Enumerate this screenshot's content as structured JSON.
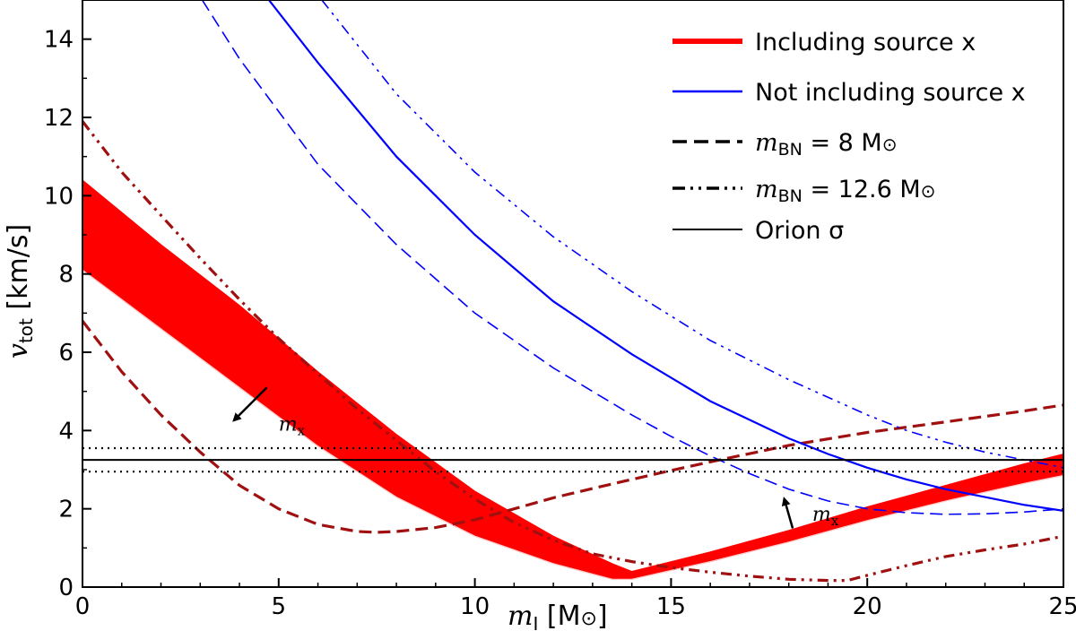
{
  "chart_data": {
    "type": "line",
    "xlabel": "m_I [M_sun]",
    "ylabel": "v_tot [km/s]",
    "xlim": [
      0,
      25
    ],
    "ylim": [
      0,
      15
    ],
    "xticks": [
      0,
      5,
      10,
      15,
      20,
      25
    ],
    "yticks": [
      0,
      2,
      4,
      6,
      8,
      10,
      12,
      14
    ],
    "x_tick_labels": [
      "0",
      "5",
      "10",
      "15",
      "20",
      "25"
    ],
    "y_tick_labels": [
      "0",
      "2",
      "4",
      "6",
      "8",
      "10",
      "12",
      "14"
    ],
    "axis_labels": {
      "x_main": "m",
      "x_sub": "I",
      "x_unit": " [M",
      "x_sun": "⊙",
      "x_close": "]",
      "y_main": "v",
      "y_sub": "tot",
      "y_unit": " [km/s]"
    },
    "legend": {
      "position": "top-right",
      "entries": [
        {
          "label": "Including source x",
          "color": "#ff0000",
          "style": "solid-thick"
        },
        {
          "label": "Not including source x",
          "color": "#0000ff",
          "style": "solid"
        },
        {
          "label_pre": "m",
          "label_sub": "BN",
          "label_post": " = 8 M",
          "label_sun": "⊙",
          "color": "#000000",
          "style": "dashed"
        },
        {
          "label_pre": "m",
          "label_sub": "BN",
          "label_post": " = 12.6 M",
          "label_sun": "⊙",
          "color": "#000000",
          "style": "dashdotdot"
        },
        {
          "label": "Orion σ",
          "color": "#000000",
          "style": "solid"
        }
      ]
    },
    "annotations": [
      {
        "text_main": "m",
        "text_sub": "x",
        "at": [
          5.0,
          4.0
        ],
        "arrow_from": [
          4.7,
          5.1
        ],
        "arrow_to": [
          3.9,
          4.3
        ]
      },
      {
        "text_main": "m",
        "text_sub": "x",
        "at": [
          18.6,
          1.7
        ],
        "arrow_from": [
          18.1,
          1.5
        ],
        "arrow_to": [
          17.9,
          2.2
        ]
      }
    ],
    "series": [
      {
        "name": "Including source x (band, m_BN=8)",
        "kind": "band",
        "color": "#ff0000",
        "upper": [
          [
            0,
            10.4
          ],
          [
            2,
            8.75
          ],
          [
            4,
            7.2
          ],
          [
            6,
            5.5
          ],
          [
            8,
            3.9
          ],
          [
            10,
            2.45
          ],
          [
            12,
            1.3
          ],
          [
            13.5,
            0.6
          ],
          [
            14,
            0.4
          ],
          [
            16,
            0.9
          ],
          [
            18,
            1.45
          ],
          [
            20,
            2.05
          ],
          [
            22,
            2.6
          ],
          [
            24,
            3.15
          ],
          [
            25,
            3.4
          ]
        ],
        "lower": [
          [
            0,
            8.1
          ],
          [
            2,
            6.6
          ],
          [
            4,
            5.1
          ],
          [
            6,
            3.6
          ],
          [
            8,
            2.3
          ],
          [
            10,
            1.3
          ],
          [
            12,
            0.6
          ],
          [
            13.5,
            0.2
          ],
          [
            14,
            0.2
          ],
          [
            16,
            0.65
          ],
          [
            18,
            1.15
          ],
          [
            20,
            1.7
          ],
          [
            22,
            2.2
          ],
          [
            24,
            2.65
          ],
          [
            25,
            2.85
          ]
        ]
      },
      {
        "name": "Including source x, m_BN=8 (dashed)",
        "color": "#a01010",
        "style": "dashed",
        "points": [
          [
            0,
            6.8
          ],
          [
            1,
            5.5
          ],
          [
            2,
            4.4
          ],
          [
            3,
            3.45
          ],
          [
            4,
            2.6
          ],
          [
            5,
            2.0
          ],
          [
            6,
            1.6
          ],
          [
            7,
            1.42
          ],
          [
            7.5,
            1.4
          ],
          [
            8,
            1.42
          ],
          [
            9,
            1.52
          ],
          [
            10,
            1.72
          ],
          [
            11,
            2.0
          ],
          [
            12,
            2.28
          ],
          [
            13,
            2.52
          ],
          [
            14,
            2.75
          ],
          [
            15,
            2.98
          ],
          [
            16,
            3.2
          ],
          [
            18,
            3.62
          ],
          [
            20,
            3.95
          ],
          [
            22,
            4.22
          ],
          [
            24,
            4.5
          ],
          [
            25,
            4.65
          ]
        ]
      },
      {
        "name": "Including source x, m_BN=12.6 (dash-dot-dot)",
        "color": "#a01010",
        "style": "dashdotdot",
        "points": [
          [
            0,
            11.9
          ],
          [
            1,
            10.6
          ],
          [
            2,
            9.5
          ],
          [
            3,
            8.4
          ],
          [
            4,
            7.35
          ],
          [
            5,
            6.35
          ],
          [
            6,
            5.45
          ],
          [
            7,
            4.55
          ],
          [
            8,
            3.75
          ],
          [
            9,
            2.95
          ],
          [
            10,
            2.25
          ],
          [
            11,
            1.65
          ],
          [
            12,
            1.2
          ],
          [
            13,
            0.85
          ],
          [
            14,
            0.65
          ],
          [
            15,
            0.5
          ],
          [
            16,
            0.38
          ],
          [
            17,
            0.28
          ],
          [
            18,
            0.2
          ],
          [
            19,
            0.17
          ],
          [
            19.5,
            0.17
          ],
          [
            20,
            0.3
          ],
          [
            21,
            0.55
          ],
          [
            22,
            0.78
          ],
          [
            23,
            0.95
          ],
          [
            24,
            1.1
          ],
          [
            25,
            1.3
          ]
        ]
      },
      {
        "name": "Not including source x (solid)",
        "color": "#0000ff",
        "style": "solid",
        "points": [
          [
            4.75,
            15
          ],
          [
            6,
            13.4
          ],
          [
            8,
            11.0
          ],
          [
            10,
            9.0
          ],
          [
            12,
            7.3
          ],
          [
            14,
            5.95
          ],
          [
            16,
            4.75
          ],
          [
            18,
            3.8
          ],
          [
            19,
            3.4
          ],
          [
            20,
            3.05
          ],
          [
            21,
            2.75
          ],
          [
            22,
            2.5
          ],
          [
            23,
            2.3
          ],
          [
            24,
            2.1
          ],
          [
            25,
            1.95
          ]
        ]
      },
      {
        "name": "Not including source x, m_BN=8 (dashed)",
        "color": "#0000ff",
        "style": "dashed",
        "points": [
          [
            3.05,
            15
          ],
          [
            4,
            13.5
          ],
          [
            6,
            10.8
          ],
          [
            8,
            8.75
          ],
          [
            10,
            7.0
          ],
          [
            12,
            5.6
          ],
          [
            14,
            4.4
          ],
          [
            15,
            3.85
          ],
          [
            16,
            3.35
          ],
          [
            17,
            2.9
          ],
          [
            18,
            2.5
          ],
          [
            19,
            2.2
          ],
          [
            20,
            2.0
          ],
          [
            21,
            1.9
          ],
          [
            22,
            1.86
          ],
          [
            23,
            1.87
          ],
          [
            24,
            1.92
          ],
          [
            25,
            2.0
          ]
        ]
      },
      {
        "name": "Not including source x, m_BN=12.6 (dash-dot-dot)",
        "color": "#0000ff",
        "style": "dashdotdot",
        "points": [
          [
            6.1,
            15
          ],
          [
            8,
            12.6
          ],
          [
            10,
            10.6
          ],
          [
            12,
            8.95
          ],
          [
            14,
            7.55
          ],
          [
            16,
            6.3
          ],
          [
            18,
            5.3
          ],
          [
            20,
            4.4
          ],
          [
            21,
            4.0
          ],
          [
            22,
            3.7
          ],
          [
            23,
            3.45
          ],
          [
            24,
            3.25
          ],
          [
            25,
            3.05
          ]
        ]
      },
      {
        "name": "Orion σ (mean)",
        "color": "#000000",
        "style": "solid",
        "points": [
          [
            0,
            3.25
          ],
          [
            25,
            3.25
          ]
        ]
      },
      {
        "name": "Orion σ (upper bound)",
        "color": "#000000",
        "style": "dotted",
        "points": [
          [
            0,
            3.55
          ],
          [
            25,
            3.55
          ]
        ]
      },
      {
        "name": "Orion σ (lower bound)",
        "color": "#000000",
        "style": "dotted",
        "points": [
          [
            0,
            2.95
          ],
          [
            25,
            2.95
          ]
        ]
      }
    ]
  }
}
